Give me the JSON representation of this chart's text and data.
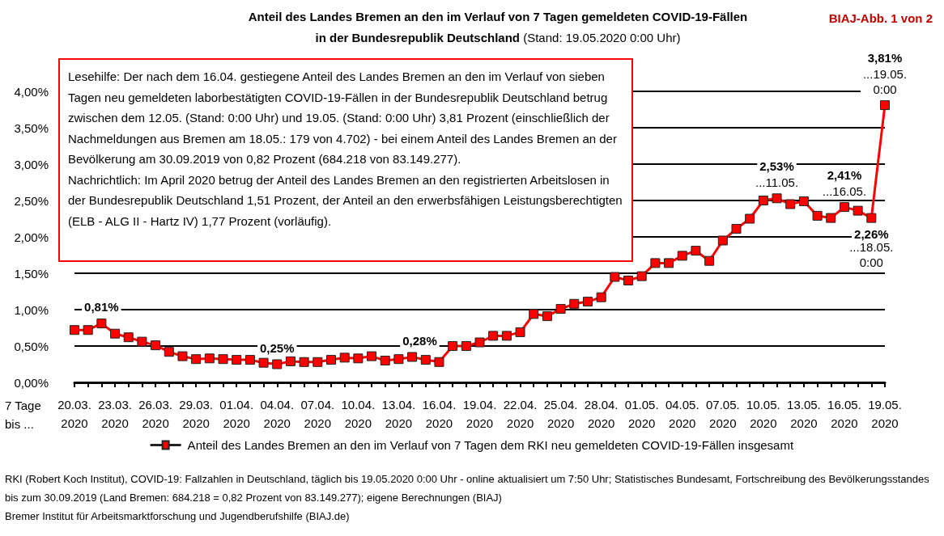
{
  "chart_data": {
    "type": "line",
    "title": "Anteil des Landes Bremen an den im Verlauf von 7 Tagen gemeldeten COVID-19-Fällen in der Bundesrepublik Deutschland",
    "subtitle": "(Stand: 19.05.2020 0:00 Uhr)",
    "xlabel": "7 Tage\nbis ...",
    "categories": [
      "20.03.\n2020",
      null,
      null,
      "23.03.\n2020",
      null,
      null,
      "26.03.\n2020",
      null,
      null,
      "29.03.\n2020",
      null,
      null,
      "01.04.\n2020",
      null,
      null,
      "04.04.\n2020",
      null,
      null,
      "07.04.\n2020",
      null,
      null,
      "10.04.\n2020",
      null,
      null,
      "13.04.\n2020",
      null,
      null,
      "16.04.\n2020",
      null,
      null,
      "19.04.\n2020",
      null,
      null,
      "22.04.\n2020",
      null,
      null,
      "25.04.\n2020",
      null,
      null,
      "28.04.\n2020",
      null,
      null,
      "01.05.\n2020",
      null,
      null,
      "04.05.\n2020",
      null,
      null,
      "07.05.\n2020",
      null,
      null,
      "10.05.\n2020",
      null,
      null,
      "13.05.\n2020",
      null,
      null,
      "16.05.\n2020",
      null,
      null,
      "19.05.\n2020"
    ],
    "series": [
      {
        "name": "Anteil des Landes Bremen an den im Verlauf von 7 Tagen dem RKI neu gemeldeten COVID-19-Fällen insgesamt",
        "color": "#ff0000",
        "values": [
          0.72,
          0.72,
          0.81,
          0.67,
          0.62,
          0.56,
          0.51,
          0.42,
          0.36,
          0.32,
          0.33,
          0.32,
          0.31,
          0.31,
          0.27,
          0.25,
          0.29,
          0.28,
          0.28,
          0.31,
          0.34,
          0.33,
          0.36,
          0.3,
          0.32,
          0.35,
          0.31,
          0.28,
          0.5,
          0.5,
          0.55,
          0.64,
          0.64,
          0.69,
          0.94,
          0.91,
          1.01,
          1.08,
          1.11,
          1.17,
          1.45,
          1.4,
          1.46,
          1.64,
          1.64,
          1.74,
          1.81,
          1.67,
          1.95,
          2.11,
          2.25,
          2.5,
          2.53,
          2.45,
          2.49,
          2.29,
          2.26,
          2.41,
          2.36,
          2.26,
          3.81
        ],
        "value_labels": [
          null,
          null,
          "0,81%",
          null,
          null,
          null,
          null,
          null,
          null,
          null,
          null,
          null,
          null,
          null,
          null,
          "0,25%",
          null,
          null,
          null,
          null,
          null,
          null,
          null,
          null,
          null,
          null,
          null,
          "0,28%",
          null,
          null,
          null,
          null,
          null,
          null,
          null,
          null,
          null,
          null,
          null,
          null,
          null,
          null,
          null,
          null,
          null,
          null,
          null,
          null,
          null,
          null,
          null,
          null,
          "2,53%",
          null,
          null,
          null,
          null,
          "2,41%",
          null,
          "2,26%",
          "3,81%"
        ]
      }
    ],
    "ylim": [
      0,
      4
    ],
    "yticks": [
      {
        "value": 0,
        "label": "0,00%"
      },
      {
        "value": 0.5,
        "label": "0,50%"
      },
      {
        "value": 1,
        "label": "1,00%"
      },
      {
        "value": 1.5,
        "label": "1,50%"
      },
      {
        "value": 2,
        "label": "2,00%"
      },
      {
        "value": 2.5,
        "label": "2,50%"
      },
      {
        "value": 3,
        "label": "3,00%"
      },
      {
        "value": 3.5,
        "label": "3,50%"
      },
      {
        "value": 4,
        "label": "4,00%"
      }
    ],
    "grid": "y",
    "legend": "bottom",
    "marker": "square",
    "line_style": "solid",
    "annotations": [
      "BIAJ-Abb. 1 von 2",
      "Lesehilfe: Der nach dem 16.04. gestiegene Anteil des Landes Bremen an den im Verlauf von sieben Tagen neu gemeldeten laborbestätigten COVID-19-Fällen in der Bundesrepublik Deutschland betrug zwischen dem 12.05. (Stand: 0:00 Uhr) und 19.05. (Stand: 0:00 Uhr) 3,81 Prozent (einschließlich der Nachmeldungen aus Bremen am 18.05.: 179 von 4.702) - bei einem Anteil des Landes Bremen an der Bevölkerung am 30.09.2019 von 0,82 Prozent (684.218 von 83.149.277).\nNachrichtlich: Im April 2020 betrug der Anteil des Landes Bremen an den registrierten Arbeitslosen in der Bundesrepublik Deutschland  1,51 Prozent, der Anteil an den erwerbsfähigen Leistungsberechtigten (ELB - ALG II - Hartz IV) 1,77 Prozent (vorläufig).",
      "RKI (Robert Koch Institut), COVID-19: Fallzahlen in Deutschland, täglich bis 19.05.2020 0:00 Uhr - online aktualisiert um 7:50 Uhr; Statistisches Bundesamt, Fortschreibung des Bevölkerungsstandes bis zum 30.09.2019 (Land Bremen: 684.218 = 0,82 Prozent von 83.149.277); eigene Berechnungen (BIAJ)\nBremer Institut für Arbeitsmarktforschung und Jugendberufshilfe (BIAJ.de)",
      {
        "text": "...11.05.",
        "y": 2.53
      },
      {
        "text": "...16.05.",
        "y": 2.41
      },
      {
        "text": "...18.05.\n0:00",
        "y": 2.26
      },
      {
        "text": "...19.05.\n0:00",
        "y": 3.81
      }
    ]
  }
}
